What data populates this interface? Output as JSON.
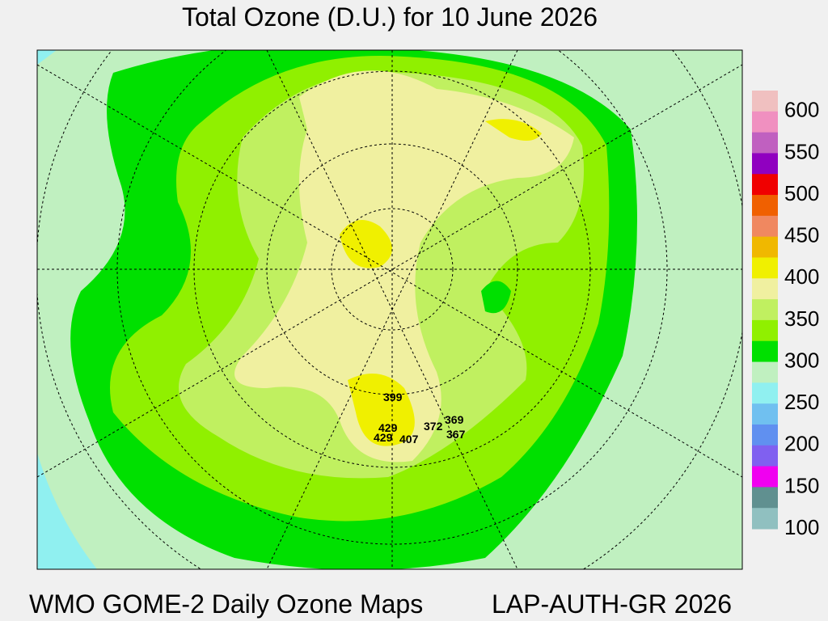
{
  "title": "Total Ozone (D.U.) for 10 June 2026",
  "footer_left": "WMO GOME-2 Daily Ozone Maps",
  "footer_right": "LAP-AUTH-GR 2026",
  "legend": {
    "colors": [
      "#f0c0c0",
      "#f090c0",
      "#c060c0",
      "#9000c0",
      "#f00000",
      "#f06000",
      "#f08860",
      "#f0b800",
      "#f0f000",
      "#f0f0a0",
      "#c0f060",
      "#90f000",
      "#00e000",
      "#c0f0c0",
      "#90f0f0",
      "#70c0f0",
      "#6090f0",
      "#8060f0",
      "#f000f0",
      "#609090",
      "#90c0c0"
    ],
    "labels": [
      600,
      550,
      500,
      450,
      400,
      350,
      300,
      250,
      200,
      150,
      100
    ]
  },
  "stations": [
    399,
    429,
    429,
    407,
    372,
    369,
    367
  ]
}
